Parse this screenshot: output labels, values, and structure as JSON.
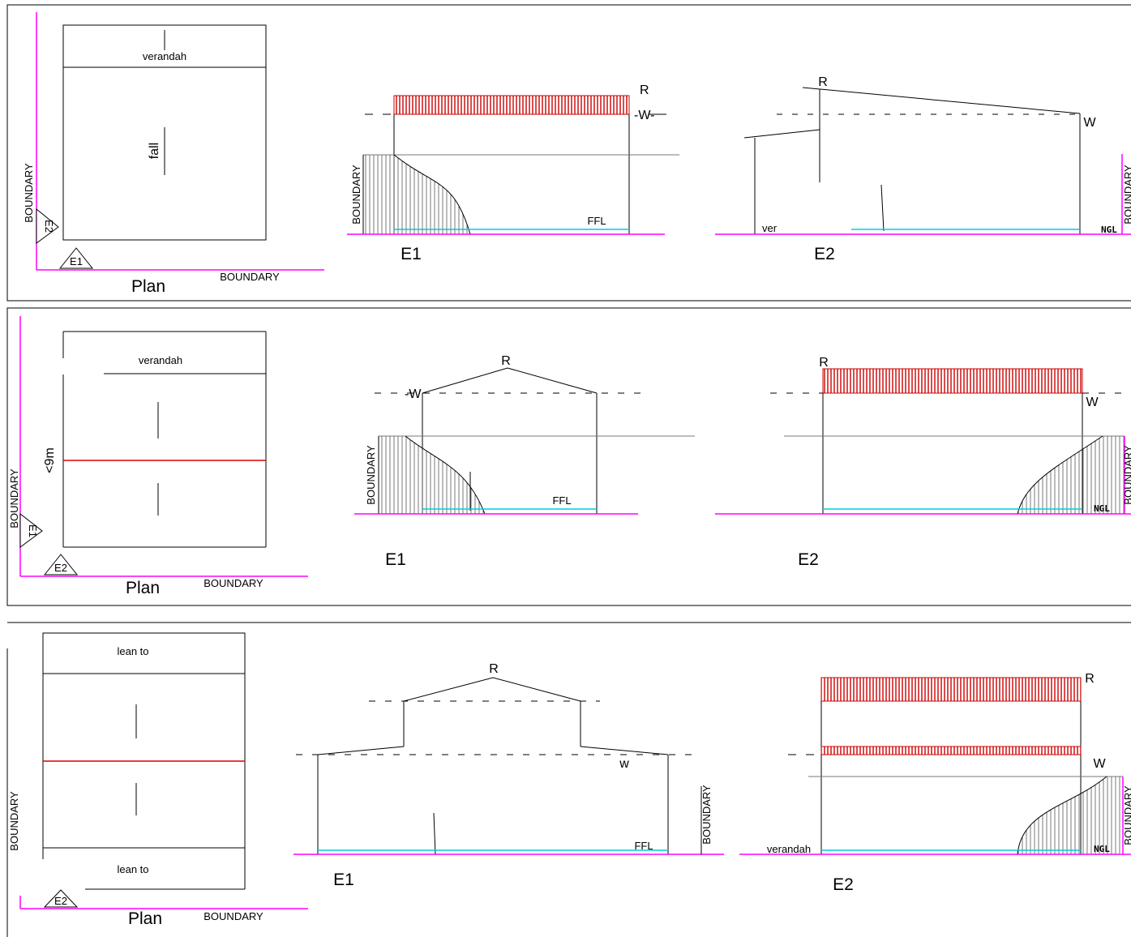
{
  "labels": {
    "verandah": "verandah",
    "fall": "fall",
    "boundary": "BOUNDARY",
    "plan": "Plan",
    "e1": "E1",
    "e2": "E2",
    "r": "R",
    "w": "W",
    "w_marker": "-W-",
    "w_left": "-W",
    "w_lower": "w",
    "ffl": "FFL",
    "ngl": "NGL",
    "ver_trunc": "ver",
    "lt9m": "<9m",
    "lean_to": "lean to"
  },
  "colors": {
    "boundary_line": "#ff00ff",
    "ffl_line": "#00ccdd",
    "wall_load": "#cc0000",
    "ridge_split": "#dd0000",
    "line": "#000000"
  }
}
